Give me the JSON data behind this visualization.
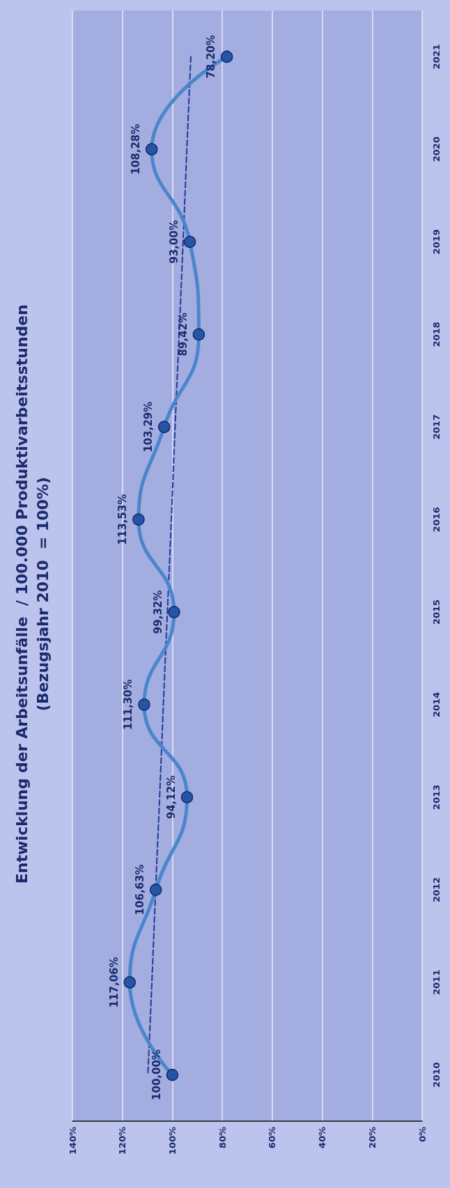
{
  "chart_data": {
    "type": "line",
    "title": "Entwicklung der Arbeitsunfälle  / 100.000 Produktivarbeitsstunden\n(Bezugsjahr 2010  = 100%)",
    "categories": [
      "2021",
      "2020",
      "2019",
      "2018",
      "2017",
      "2016",
      "2015",
      "2014",
      "2013",
      "2012",
      "2011",
      "2010"
    ],
    "series": [
      {
        "color": "#4a86cc",
        "values": [
          78.2,
          108.28,
          93,
          89.42,
          103.29,
          113.53,
          99.32,
          111.3,
          94.12,
          106.63,
          117.06,
          100
        ],
        "value_labels": [
          "78,20%",
          "108,28%",
          "93,00%",
          "89,42%",
          "103,29%",
          "113,53%",
          "99,32%",
          "111,30%",
          "94,12%",
          "106,63%",
          "117,06%",
          "100,00%"
        ],
        "marker": "circle",
        "line_style": "solid"
      },
      {
        "type": "line",
        "color": "#1f3a9c",
        "values": [
          92.6,
          94.2,
          95.7,
          97.3,
          98.9,
          100.4,
          102,
          103.6,
          105.1,
          106.7,
          108.2,
          109.8
        ],
        "marker": "none",
        "line_style": "dashed"
      }
    ],
    "orientation": "horizontal",
    "xlim": [
      140,
      0
    ],
    "xticks": [
      {
        "value": 0,
        "label": "0%"
      },
      {
        "value": 20,
        "label": "20%"
      },
      {
        "value": 40,
        "label": "40%"
      },
      {
        "value": 60,
        "label": "60%"
      },
      {
        "value": 80,
        "label": "80%"
      },
      {
        "value": 100,
        "label": "100%"
      },
      {
        "value": 120,
        "label": "120%"
      },
      {
        "value": 140,
        "label": "140%"
      }
    ],
    "grid": "x"
  }
}
